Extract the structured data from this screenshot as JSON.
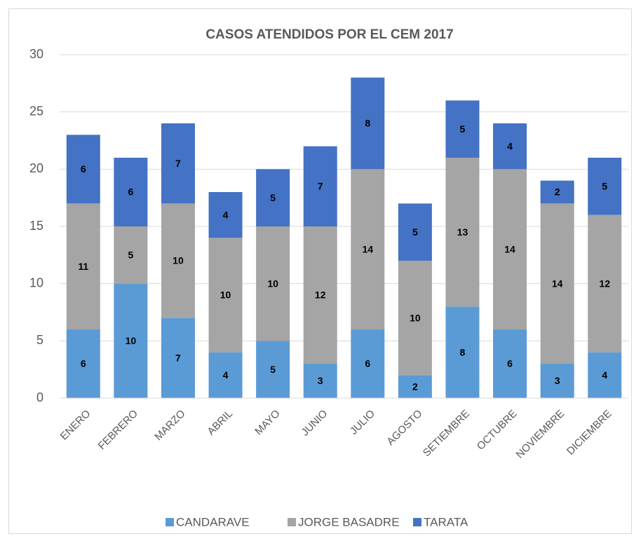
{
  "chart_data": {
    "type": "stacked_bar",
    "title": "CASOS ATENDIDOS POR EL CEM 2017",
    "categories": [
      "ENERO",
      "FEBRERO",
      "MARZO",
      "ABRIL",
      "MAYO",
      "JUNIO",
      "JULIO",
      "AGOSTO",
      "SETIEMBRE",
      "OCTUBRE",
      "NOVIEMBRE",
      "DICIEMBRE"
    ],
    "series": [
      {
        "name": "CANDARAVE",
        "color": "#5b9bd5",
        "values": [
          6,
          10,
          7,
          4,
          5,
          3,
          6,
          2,
          8,
          6,
          3,
          4
        ]
      },
      {
        "name": "JORGE BASADRE",
        "color": "#a5a5a5",
        "values": [
          11,
          5,
          10,
          10,
          10,
          12,
          14,
          10,
          13,
          14,
          14,
          12
        ]
      },
      {
        "name": "TARATA",
        "color": "#4472c4",
        "values": [
          6,
          6,
          7,
          4,
          5,
          7,
          8,
          5,
          5,
          4,
          2,
          5
        ]
      }
    ],
    "ylim": [
      0,
      30
    ],
    "yticks": [
      0,
      5,
      10,
      15,
      20,
      25,
      30
    ],
    "grid": true,
    "legend": "bottom"
  }
}
